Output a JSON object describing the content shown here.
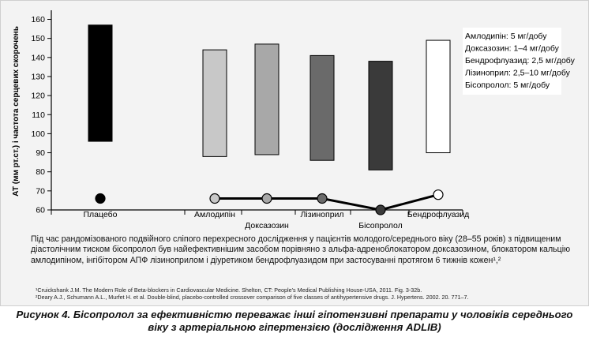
{
  "chart_data": {
    "type": "bar",
    "subtype": "floating-range-with-line",
    "ylabel": "АТ (мм рт.ст.) і частота серцевих скорочень",
    "ylim": [
      60,
      165
    ],
    "yticks": [
      60,
      70,
      80,
      90,
      100,
      110,
      120,
      130,
      140,
      150,
      160
    ],
    "grid": false,
    "categories": [
      "Плацебо",
      "Амлодипін",
      "Доксазозин",
      "Лізиноприл",
      "Бісопролол",
      "Бендрофлуазид"
    ],
    "bars": [
      {
        "category": "Плацебо",
        "low": 96,
        "high": 157,
        "color": "#000000"
      },
      {
        "category": "Амлодипін",
        "low": 88,
        "high": 144,
        "color": "#c8c8c8"
      },
      {
        "category": "Доксазозин",
        "low": 89,
        "high": 147,
        "color": "#a8a8a8"
      },
      {
        "category": "Лізиноприл",
        "low": 86,
        "high": 141,
        "color": "#6a6a6a"
      },
      {
        "category": "Бісопролол",
        "low": 81,
        "high": 138,
        "color": "#3a3a3a"
      },
      {
        "category": "Бендрофлуазид",
        "low": 90,
        "high": 149,
        "color": "#ffffff"
      }
    ],
    "heart_rate": [
      {
        "category": "Плацебо",
        "value": 66,
        "color": "#000000"
      },
      {
        "category": "Амлодипін",
        "value": 66,
        "color": "#c8c8c8"
      },
      {
        "category": "Доксазозин",
        "value": 66,
        "color": "#a8a8a8"
      },
      {
        "category": "Лізиноприл",
        "value": 66,
        "color": "#6a6a6a"
      },
      {
        "category": "Бісопролол",
        "value": 60,
        "color": "#3a3a3a"
      },
      {
        "category": "Бендрофлуазид",
        "value": 68,
        "color": "#ffffff"
      }
    ],
    "legend": {
      "placement": "top-right",
      "items": [
        "Амлодипін: 5 мг/добу",
        "Доксазозин: 1–4 мг/добу",
        "Бендрофлуазид: 2,5 мг/добу",
        "Лізиноприл: 2,5–10 мг/добу",
        "Бісопролол: 5 мг/добу"
      ]
    }
  },
  "note": "Під час рандомізованого подвійного сліпого перехресного дослідження у пацієнтів молодого/середнього віку (28–55 років) з підвищеним діастолічним тиском бісопролол був найефективнішим засобом порівняно з альфа-адреноблокатором доксазозином, блокатором кальцію амлодипіном, інгібітором АПФ лізиноприлом і діуретиком бендрофлуазидом при застосуванні протягом 6 тижнів кожен¹,²",
  "references": [
    "¹Cruickshank J.M. The Modern Role of Beta-blockers in Cardiovascular Medicine. Shelton, CT: People's Medical Publishing House-USA, 2011. Fig. 3-32b.",
    "²Deary A.J., Schumann A.L., Murfet H. et al. Double-blind, placebo-controlled crossover comparison of five classes of antihypertensive drugs. J. Hypertens. 2002. 20. 771–7."
  ],
  "caption": [
    "Рисунок 4. Бісопролол за ефективністю переважає інші гіпотензивні препарати у чоловіків середнього",
    "віку з артеріальною гіпертензією (дослідження ADLIB)"
  ]
}
